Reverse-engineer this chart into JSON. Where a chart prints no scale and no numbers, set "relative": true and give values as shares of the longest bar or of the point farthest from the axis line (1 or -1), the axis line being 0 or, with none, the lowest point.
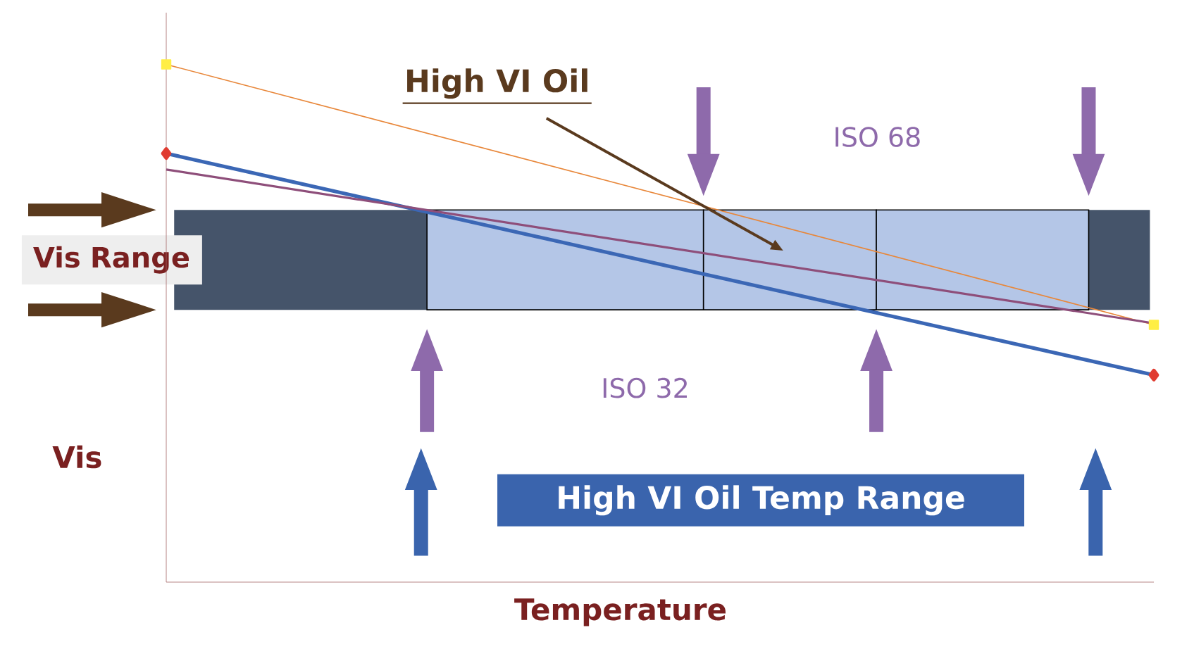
{
  "chart_data": {
    "type": "line",
    "relative": true,
    "xlabel": "Temperature",
    "ylabel": "Vis",
    "categories": [
      null,
      null
    ],
    "series": [
      {
        "color": "#e8873a",
        "values": [
          1,
          0.497
        ],
        "marker": "square"
      },
      {
        "color": "#3b67b5",
        "values": [
          0.828,
          0.4
        ],
        "marker": "diamond"
      },
      {
        "color": "#8e4e7a",
        "values": [
          0.797,
          0.5
        ],
        "marker": "none"
      }
    ],
    "bands": [
      {
        "axis": "y",
        "from": 0.526,
        "to": 0.719,
        "label": "Vis Range",
        "color": "#45546a"
      }
    ],
    "annotations": [
      "High VI Oil",
      "ISO 68",
      "ISO 32",
      "High VI Oil Temp Range"
    ]
  }
}
